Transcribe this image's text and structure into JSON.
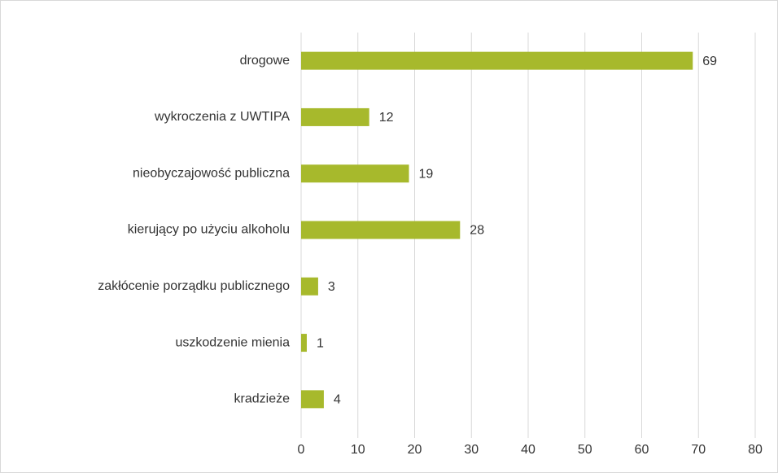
{
  "chart_data": {
    "type": "bar",
    "orientation": "horizontal",
    "categories": [
      "drogowe",
      "wykroczenia z UWTIPA",
      "nieobyczajowość publiczna",
      "kierujący po użyciu alkoholu",
      "zakłócenie porządku publicznego",
      "uszkodzenie mienia",
      "kradzieże"
    ],
    "values": [
      69,
      12,
      19,
      28,
      3,
      1,
      4
    ],
    "color": "#a7b92c",
    "xlim": [
      0,
      80
    ],
    "xticks": [
      0,
      10,
      20,
      30,
      40,
      50,
      60,
      70,
      80
    ],
    "grid": true
  }
}
